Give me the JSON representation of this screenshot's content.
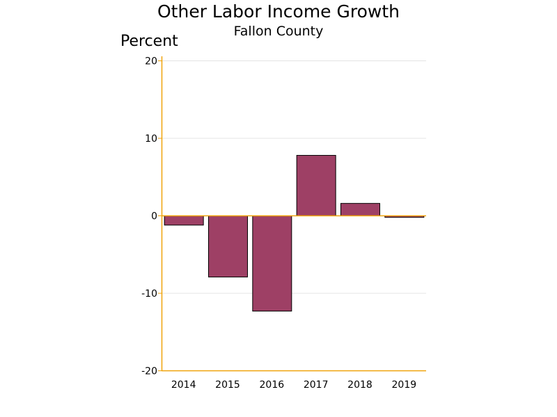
{
  "chart_data": {
    "type": "bar",
    "title": "Other Labor Income Growth",
    "subtitle": "Fallon County",
    "ylabel": "Percent",
    "xlabel": "",
    "categories": [
      "2014",
      "2015",
      "2016",
      "2017",
      "2018",
      "2019"
    ],
    "values": [
      -1.2,
      -7.9,
      -12.3,
      7.8,
      1.6,
      -0.2
    ],
    "ylim": [
      -20,
      20
    ],
    "yticks": [
      20,
      10,
      0,
      -10,
      -20
    ],
    "grid": true,
    "legend": "none",
    "colors": {
      "bar_fill": "#9e4065",
      "bar_stroke": "#000000",
      "axis": "#f0a30a",
      "grid": "#e4e4e4"
    }
  }
}
